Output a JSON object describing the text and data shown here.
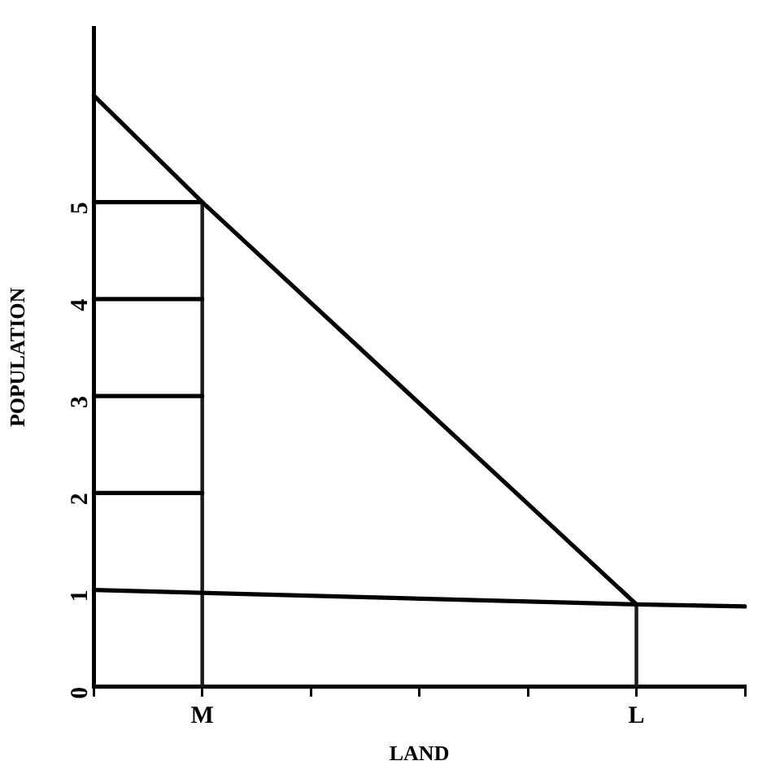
{
  "chart_data": {
    "type": "line",
    "xlabel": "LAND",
    "ylabel": "POPULATION",
    "categories": [
      null,
      "M",
      null,
      null,
      null,
      "L",
      null
    ],
    "ylim": [
      0,
      6.8
    ],
    "yticks": [
      0,
      1,
      2,
      3,
      4,
      5
    ],
    "grid": false,
    "legend": false,
    "marker": "none",
    "line_style": "solid",
    "series": [
      {
        "color": "#000000",
        "values": [
          6.1,
          5,
          null,
          null,
          null,
          0.85,
          null
        ]
      },
      {
        "color": "#000000",
        "values": [
          1.0,
          null,
          null,
          null,
          null,
          0.85,
          0.83
        ]
      },
      {
        "type": "bar",
        "color": "#1c1c1c",
        "values": [
          null,
          5,
          null,
          null,
          null,
          0.85,
          null
        ]
      },
      {
        "color": "#000000",
        "values": [
          5,
          5,
          null,
          null,
          null,
          null,
          null
        ]
      },
      {
        "color": "#000000",
        "values": [
          4,
          4,
          null,
          null,
          null,
          null,
          null
        ]
      },
      {
        "color": "#000000",
        "values": [
          3,
          3,
          null,
          null,
          null,
          null,
          null
        ]
      },
      {
        "color": "#000000",
        "values": [
          2,
          2,
          null,
          null,
          null,
          null,
          null
        ]
      }
    ]
  }
}
